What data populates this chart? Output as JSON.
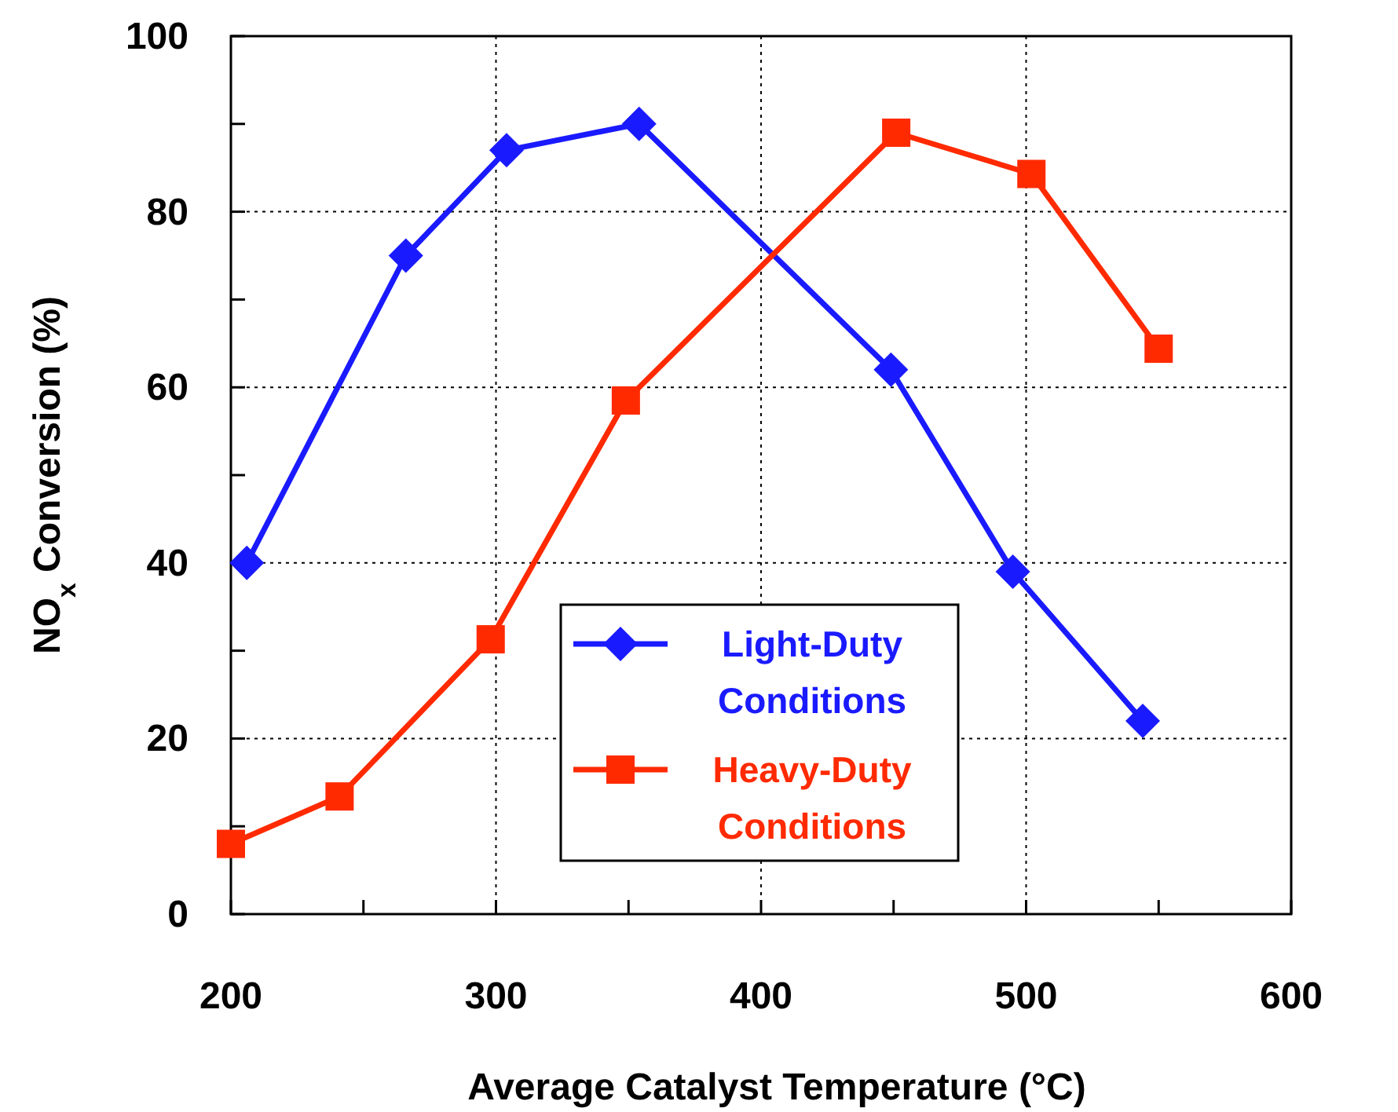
{
  "chart_data": {
    "type": "line",
    "xlabel": "Average Catalyst Temperature (°C)",
    "ylabel": "NO$_{x}$ Conversion (%)",
    "xlim": [
      200,
      600
    ],
    "xticks": [
      200,
      {
        "value": 250,
        "label": null
      },
      300,
      {
        "value": 350,
        "label": null
      },
      400,
      {
        "value": 450,
        "label": null
      },
      500,
      {
        "value": 550,
        "label": null
      },
      600
    ],
    "ylim": [
      0,
      100
    ],
    "yticks": [
      0,
      {
        "value": 10,
        "label": null
      },
      20,
      {
        "value": 30,
        "label": null
      },
      40,
      {
        "value": 50,
        "label": null
      },
      60,
      {
        "value": 70,
        "label": null
      },
      80,
      {
        "value": 90,
        "label": null
      },
      100
    ],
    "grid": true,
    "legend": "bottom",
    "line_style": "solid",
    "series": [
      {
        "name": "Light-Duty Conditions",
        "color": "#1a1aff",
        "marker": "diamond",
        "x": [
          206,
          266,
          304,
          354,
          449,
          495,
          544
        ],
        "values": [
          40,
          75,
          87,
          90,
          62,
          39,
          22
        ]
      },
      {
        "name": "Heavy-Duty Conditions",
        "color": "#ff2a00",
        "marker": "square",
        "x": [
          200,
          241,
          298,
          349,
          451,
          502,
          550
        ],
        "values": [
          8,
          13.4,
          31.3,
          58.5,
          89,
          84.3,
          64.4
        ]
      }
    ]
  }
}
